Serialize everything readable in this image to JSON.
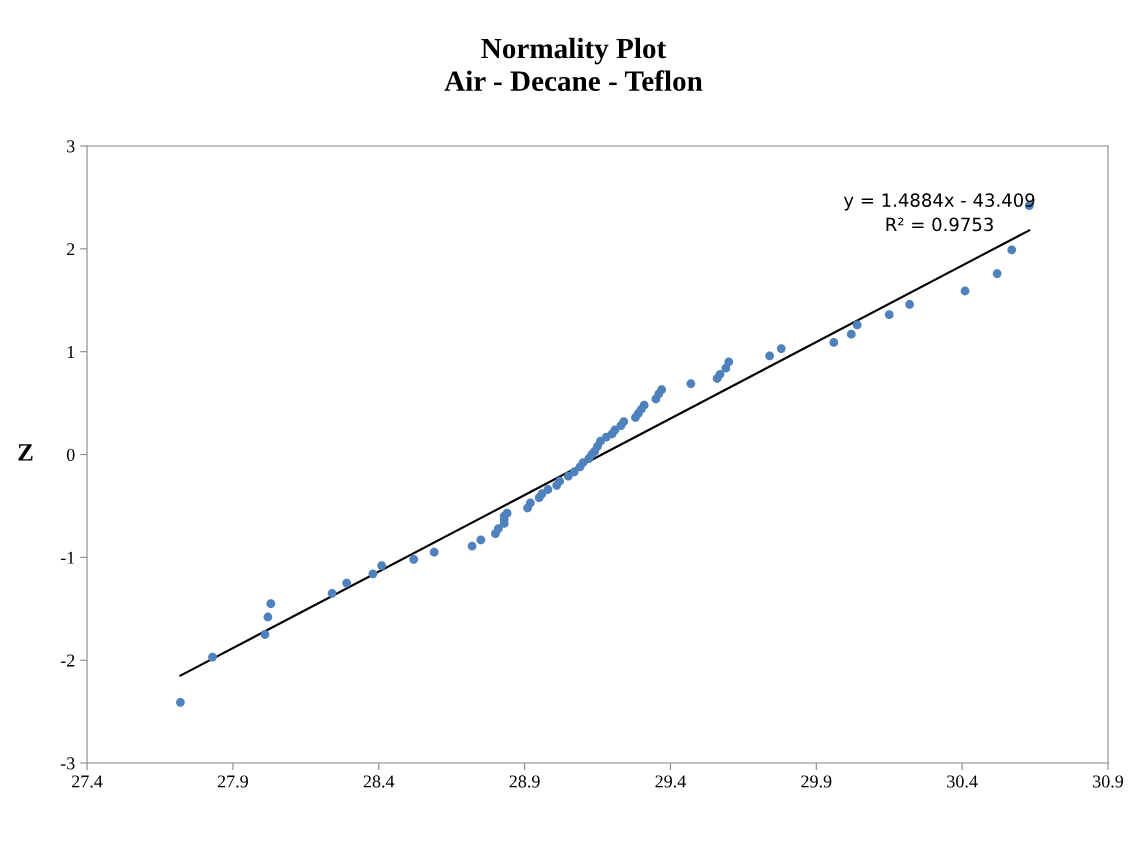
{
  "chart_data": {
    "type": "scatter",
    "title": "Normality Plot\nAir - Decane - Teflon",
    "ylabel": "Z",
    "xlim": [
      27.4,
      30.9
    ],
    "xticks": [
      27.4,
      27.9,
      28.4,
      28.9,
      29.4,
      29.9,
      30.4,
      30.9
    ],
    "ylim": [
      -3,
      3
    ],
    "yticks": [
      -3,
      -2,
      -1,
      0,
      1,
      2,
      3
    ],
    "grid": false,
    "legend": false,
    "series": [
      {
        "color": "#4f81bd",
        "marker": "circle",
        "x": [
          27.72,
          27.83,
          28.01,
          28.02,
          28.03,
          28.24,
          28.29,
          28.38,
          28.41,
          28.52,
          28.59,
          28.72,
          28.75,
          28.8,
          28.81,
          28.83,
          28.83,
          28.83,
          28.84,
          28.91,
          28.92,
          28.95,
          28.96,
          28.98,
          29.01,
          29.02,
          29.05,
          29.07,
          29.09,
          29.1,
          29.12,
          29.13,
          29.14,
          29.15,
          29.16,
          29.18,
          29.2,
          29.21,
          29.23,
          29.24,
          29.28,
          29.29,
          29.3,
          29.31,
          29.35,
          29.36,
          29.37,
          29.47,
          29.56,
          29.57,
          29.59,
          29.6,
          29.74,
          29.78,
          29.96,
          30.02,
          30.04,
          30.15,
          30.22,
          30.41,
          30.52,
          30.57,
          30.63
        ],
        "values": [
          -2.41,
          -1.97,
          -1.75,
          -1.58,
          -1.45,
          -1.35,
          -1.25,
          -1.16,
          -1.08,
          -1.02,
          -0.95,
          -0.89,
          -0.83,
          -0.77,
          -0.72,
          -0.67,
          -0.63,
          -0.6,
          -0.57,
          -0.52,
          -0.47,
          -0.42,
          -0.38,
          -0.34,
          -0.3,
          -0.26,
          -0.21,
          -0.17,
          -0.12,
          -0.08,
          -0.04,
          0,
          0.03,
          0.08,
          0.13,
          0.17,
          0.2,
          0.24,
          0.28,
          0.32,
          0.36,
          0.4,
          0.44,
          0.48,
          0.54,
          0.59,
          0.63,
          0.69,
          0.74,
          0.78,
          0.84,
          0.9,
          0.96,
          1.03,
          1.09,
          1.17,
          1.26,
          1.36,
          1.46,
          1.59,
          1.76,
          1.99,
          2.42
        ]
      },
      {
        "type": "line",
        "marker": "none",
        "color": "#000000",
        "x": [
          27.72,
          30.63
        ],
        "values": [
          -2.15,
          2.18
        ]
      }
    ],
    "annotations": [
      "y = 1.4884x - 43.409\nR² = 0.9753"
    ]
  }
}
